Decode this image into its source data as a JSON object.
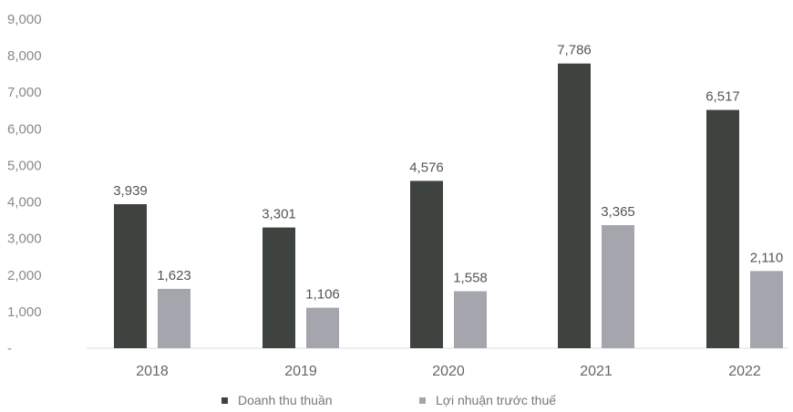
{
  "chart_data": {
    "type": "bar",
    "categories": [
      "2018",
      "2019",
      "2020",
      "2021",
      "2022"
    ],
    "series": [
      {
        "name": "Doanh thu thuần",
        "values": [
          3939,
          3301,
          4576,
          7786,
          6517
        ],
        "color": "#3f4340"
      },
      {
        "name": "Lợi nhuận trước thuế",
        "values": [
          1623,
          1106,
          1558,
          3365,
          2110
        ],
        "color": "#a4a5ad"
      }
    ],
    "value_labels": [
      [
        "3,939",
        "3,301",
        "4,576",
        "7,786",
        "6,517"
      ],
      [
        "1,623",
        "1,106",
        "1,558",
        "3,365",
        "2,110"
      ]
    ],
    "y_ticks": [
      0,
      1000,
      2000,
      3000,
      4000,
      5000,
      6000,
      7000,
      8000,
      9000
    ],
    "y_tick_labels": [
      "-",
      "1,000",
      "2,000",
      "3,000",
      "4,000",
      "5,000",
      "6,000",
      "7,000",
      "8,000",
      "9,000"
    ],
    "ylim": [
      0,
      9000
    ],
    "title": "",
    "xlabel": "",
    "ylabel": "",
    "grid": false,
    "legend_position": "bottom-center"
  }
}
